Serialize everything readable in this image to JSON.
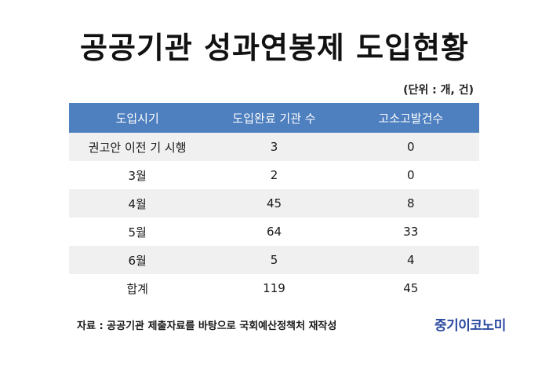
{
  "title": "공공기관 성과연봉제 도입현황",
  "unit": "(단위 : 개, 건)",
  "table": {
    "headers": [
      "도입시기",
      "도입완료 기관 수",
      "고소고발건수"
    ],
    "rows": [
      [
        "권고안 이전 기 시행",
        "3",
        "0"
      ],
      [
        "3월",
        "2",
        "0"
      ],
      [
        "4월",
        "45",
        "8"
      ],
      [
        "5월",
        "64",
        "33"
      ],
      [
        "6월",
        "5",
        "4"
      ],
      [
        "합계",
        "119",
        "45"
      ]
    ]
  },
  "source": "자료 : 공공기관 제출자료를 바탕으로 국회예산정책처 재작성",
  "logo": "중기이코노미"
}
